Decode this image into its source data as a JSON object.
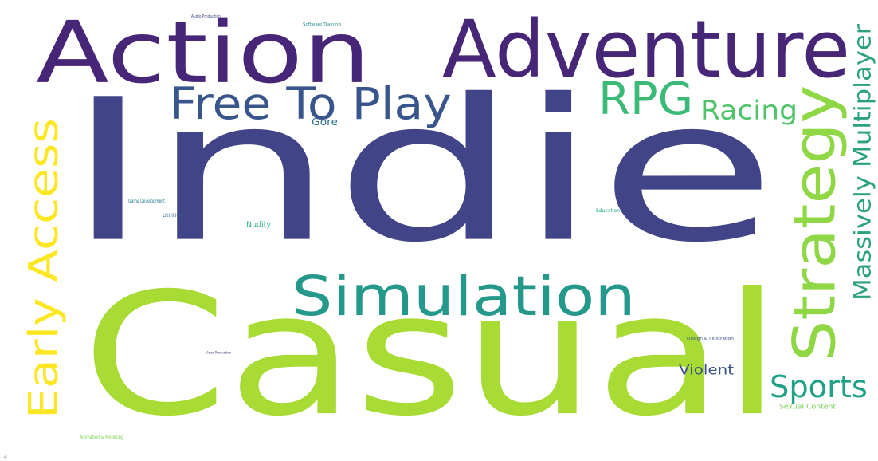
{
  "words": [
    {
      "key": "indie",
      "text": "Indie",
      "color": "#414487"
    },
    {
      "key": "casual",
      "text": "Casual",
      "color": "#a8db34"
    },
    {
      "key": "action",
      "text": "Action",
      "color": "#482677"
    },
    {
      "key": "adventure",
      "text": "Adventure",
      "color": "#482677"
    },
    {
      "key": "simulation",
      "text": "Simulation",
      "color": "#24988a"
    },
    {
      "key": "strategy",
      "text": "Strategy",
      "color": "#8fd744"
    },
    {
      "key": "early_access",
      "text": "Early Access",
      "color": "#fde725"
    },
    {
      "key": "free_to_play",
      "text": "Free To Play",
      "color": "#39568c"
    },
    {
      "key": "rpg",
      "text": "RPG",
      "color": "#3aba76"
    },
    {
      "key": "massively_multiplayer",
      "text": "Massively Multiplayer",
      "color": "#2ba17f"
    },
    {
      "key": "racing",
      "text": "Racing",
      "color": "#4fc36a"
    },
    {
      "key": "sports",
      "text": "Sports",
      "color": "#1fa188"
    },
    {
      "key": "violent",
      "text": "Violent",
      "color": "#3b528b"
    },
    {
      "key": "gore",
      "text": "Gore",
      "color": "#2d708e"
    },
    {
      "key": "nudity",
      "text": "Nudity",
      "color": "#2fb47c"
    },
    {
      "key": "sexual_content",
      "text": "Sexual Content",
      "color": "#75d054"
    },
    {
      "key": "game_development",
      "text": "Game Development",
      "color": "#2a788e"
    },
    {
      "key": "utilities",
      "text": "Utilities",
      "color": "#33638d"
    },
    {
      "key": "education",
      "text": "Education",
      "color": "#21a585"
    },
    {
      "key": "audio_production",
      "text": "Audio Production",
      "color": "#3e4a89"
    },
    {
      "key": "software_training",
      "text": "Software Training",
      "color": "#238a8d"
    },
    {
      "key": "design_illustration",
      "text": "Design & Illustration",
      "color": "#3c508b"
    },
    {
      "key": "video_production",
      "text": "Video Production",
      "color": "#46327e"
    },
    {
      "key": "animation_modeling",
      "text": "Animation & Modeling",
      "color": "#7ad151"
    }
  ],
  "corner_mark": "4"
}
